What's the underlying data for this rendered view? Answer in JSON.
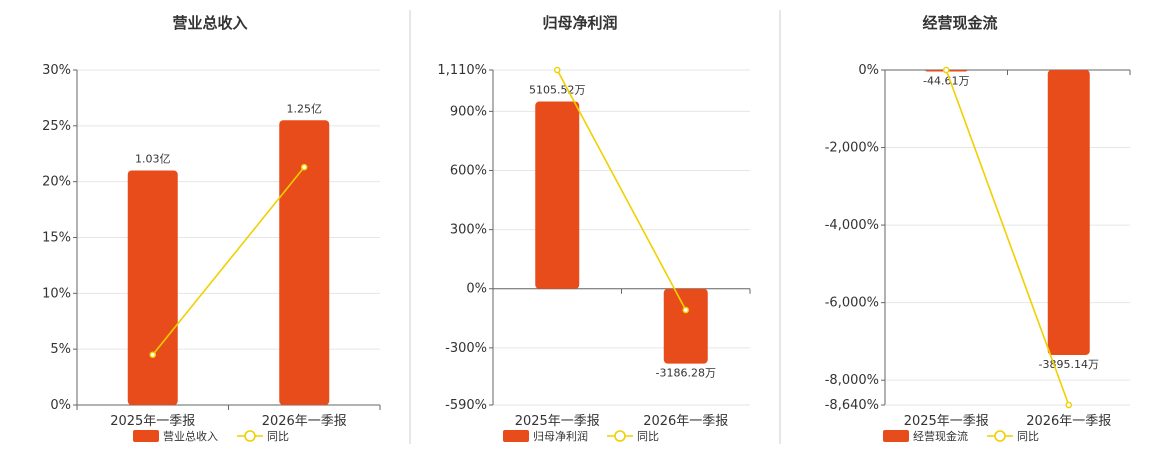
{
  "colors": {
    "bar": "#e84c1a",
    "line": "#f0d000",
    "divider": "#cfcfcf"
  },
  "legend": {
    "line_label": "同比"
  },
  "chart_data": [
    {
      "type": "bar",
      "title": "营业总收入",
      "categories": [
        "2025年一季报",
        "2026年一季报"
      ],
      "series": [
        {
          "name": "营业总收入",
          "kind": "bar",
          "values": [
            21,
            25.5
          ],
          "labels": [
            "1.03亿",
            "1.25亿"
          ]
        },
        {
          "name": "同比",
          "kind": "line",
          "values": [
            4.5,
            21.3
          ]
        }
      ],
      "yticks": [
        0,
        5,
        10,
        15,
        20,
        25,
        30
      ],
      "ytick_labels": [
        "0%",
        "5%",
        "10%",
        "15%",
        "20%",
        "25%",
        "30%"
      ],
      "ylim": [
        0,
        30
      ],
      "grid": true,
      "legend_position": "bottom"
    },
    {
      "type": "bar",
      "title": "归母净利润",
      "categories": [
        "2025年一季报",
        "2026年一季报"
      ],
      "series": [
        {
          "name": "归母净利润",
          "kind": "bar",
          "values": [
            950,
            -380
          ],
          "labels": [
            "5105.52万",
            "-3186.28万"
          ]
        },
        {
          "name": "同比",
          "kind": "line",
          "values": [
            1110,
            -108
          ]
        }
      ],
      "yticks": [
        -590,
        -300,
        0,
        300,
        600,
        900,
        1110
      ],
      "ytick_labels": [
        "-590%",
        "-300%",
        "0%",
        "300%",
        "600%",
        "900%",
        "1,110%"
      ],
      "ylim": [
        -590,
        1110
      ],
      "grid": true,
      "legend_position": "bottom"
    },
    {
      "type": "bar",
      "title": "经营现金流",
      "categories": [
        "2025年一季报",
        "2026年一季报"
      ],
      "series": [
        {
          "name": "经营现金流",
          "kind": "bar",
          "values": [
            -40,
            -7350
          ],
          "labels": [
            "-44.61万",
            "-3895.14万"
          ]
        },
        {
          "name": "同比",
          "kind": "line",
          "values": [
            0,
            -8640
          ]
        }
      ],
      "yticks": [
        -8640,
        -8000,
        -6000,
        -4000,
        -2000,
        0
      ],
      "ytick_labels": [
        "-8,640%",
        "-8,000%",
        "-6,000%",
        "-4,000%",
        "-2,000%",
        "0%"
      ],
      "ylim": [
        -8640,
        0
      ],
      "grid": true,
      "legend_position": "bottom"
    }
  ]
}
